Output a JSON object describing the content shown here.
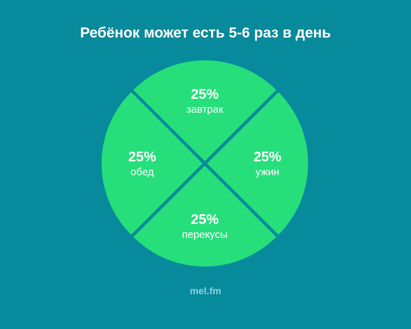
{
  "title": "Ребёнок может есть 5-6 раз в день",
  "footer": "mel.fm",
  "colors": {
    "background": "#078a9b",
    "slice": "#26df7b",
    "text": "#ffffff",
    "footer": "#8fd2dc"
  },
  "chart_data": {
    "type": "pie",
    "title": "Ребёнок может есть 5-6 раз в день",
    "slices": [
      {
        "label": "завтрак",
        "value": 25,
        "display": "25%",
        "position": "top"
      },
      {
        "label": "ужин",
        "value": 25,
        "display": "25%",
        "position": "right"
      },
      {
        "label": "перекусы",
        "value": 25,
        "display": "25%",
        "position": "bottom"
      },
      {
        "label": "обед",
        "value": 25,
        "display": "25%",
        "position": "left"
      }
    ]
  }
}
